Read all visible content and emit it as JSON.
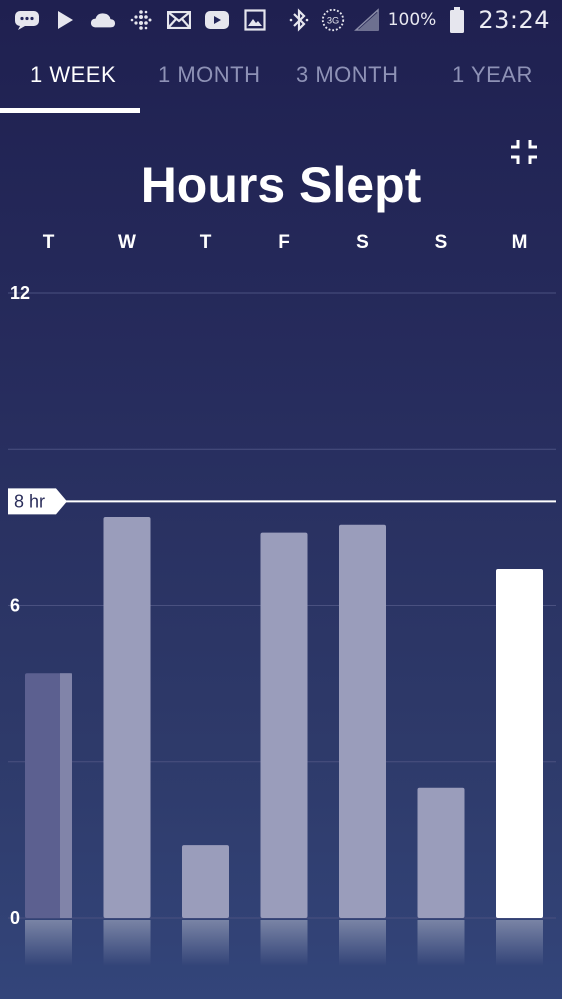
{
  "status_bar": {
    "icons": [
      "message-icon",
      "play-store-icon",
      "cloud-icon",
      "fitbit-icon",
      "mail-icon",
      "youtube-icon",
      "gallery-icon",
      "bluetooth-icon",
      "3g-icon",
      "signal-icon",
      "battery-icon"
    ],
    "network_label": "3G",
    "battery_percent": "100%",
    "time": "23:24"
  },
  "tabs": [
    {
      "label": "1 WEEK",
      "active": true
    },
    {
      "label": "1 MONTH",
      "active": false
    },
    {
      "label": "3 MONTH",
      "active": false
    },
    {
      "label": "1 YEAR",
      "active": false
    }
  ],
  "colors": {
    "bar": "#9a9dbb",
    "bar_selected": "#ffffff",
    "bar_partial": "#5c6090",
    "goal_line": "#ffffff",
    "grid": "#4a5180"
  },
  "chart_data": {
    "type": "bar",
    "title": "Hours Slept",
    "categories": [
      "T",
      "W",
      "T",
      "F",
      "S",
      "S",
      "M"
    ],
    "values": [
      4.7,
      7.7,
      1.4,
      7.4,
      7.55,
      2.5,
      6.7
    ],
    "selected_index": 6,
    "ylim": [
      0,
      12
    ],
    "yticks": [
      0,
      6,
      12
    ],
    "yticks_labeled": [
      "0",
      "6",
      "12"
    ],
    "gridlines": [
      0,
      3,
      6,
      9,
      12
    ],
    "goal": {
      "value": 8,
      "label": "8 hr"
    },
    "grid": true,
    "legend": "none"
  }
}
